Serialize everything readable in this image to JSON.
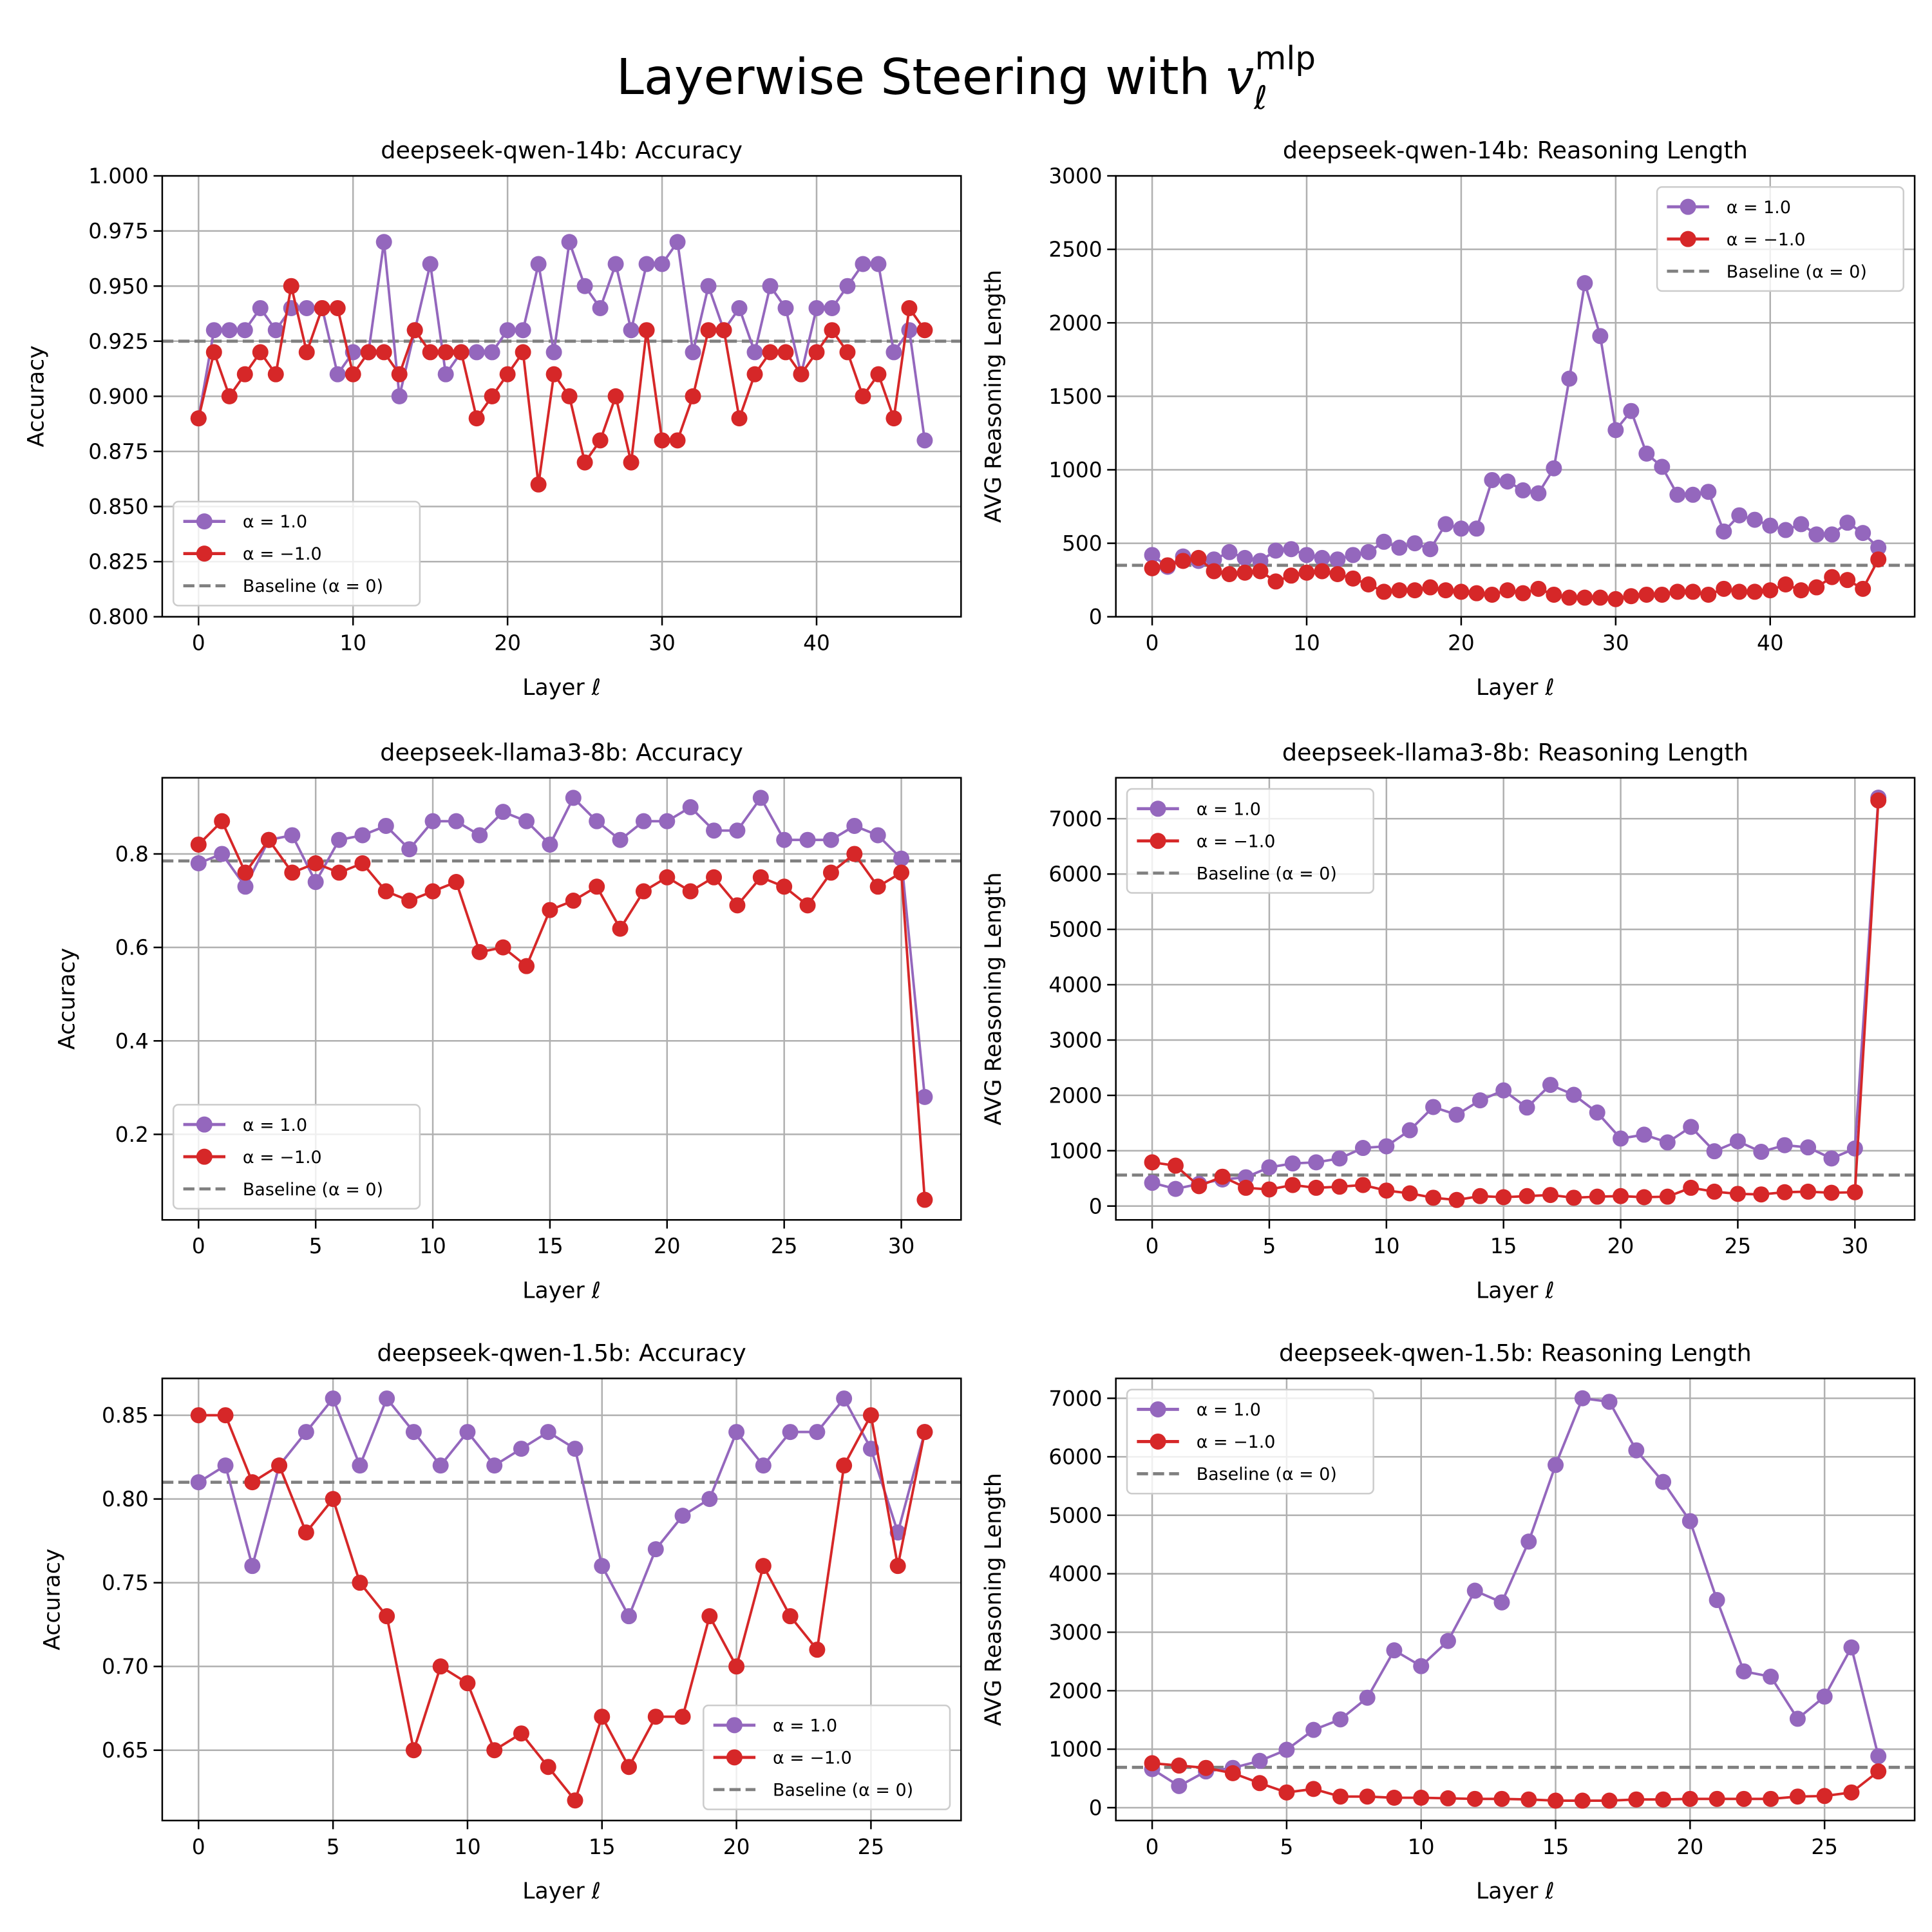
{
  "title": {
    "text": "Layerwise Steering with ",
    "symbol": "v",
    "subscript": "ℓ",
    "superscript": "mlp"
  },
  "chart_data": [
    {
      "type": "line",
      "title": "deepseek-qwen-14b: Accuracy",
      "xlabel": "Layer ℓ",
      "ylabel": "Accuracy",
      "x": [
        0,
        1,
        2,
        3,
        4,
        5,
        6,
        7,
        8,
        9,
        10,
        11,
        12,
        13,
        14,
        15,
        16,
        17,
        18,
        19,
        20,
        21,
        22,
        23,
        24,
        25,
        26,
        27,
        28,
        29,
        30,
        31,
        32,
        33,
        34,
        35,
        36,
        37,
        38,
        39,
        40,
        41,
        42,
        43,
        44,
        45,
        46,
        47
      ],
      "series": [
        {
          "name": "α = 1.0",
          "color": "#9467bd",
          "values": [
            0.89,
            0.93,
            0.93,
            0.93,
            0.94,
            0.93,
            0.94,
            0.94,
            0.94,
            0.91,
            0.92,
            0.92,
            0.97,
            0.9,
            0.93,
            0.96,
            0.91,
            0.92,
            0.92,
            0.92,
            0.93,
            0.93,
            0.96,
            0.92,
            0.97,
            0.95,
            0.94,
            0.96,
            0.93,
            0.96,
            0.96,
            0.97,
            0.92,
            0.95,
            0.93,
            0.94,
            0.92,
            0.95,
            0.94,
            0.91,
            0.94,
            0.94,
            0.95,
            0.96,
            0.96,
            0.92,
            0.93,
            0.88
          ]
        },
        {
          "name": "α = −1.0",
          "color": "#d62728",
          "values": [
            0.89,
            0.92,
            0.9,
            0.91,
            0.92,
            0.91,
            0.95,
            0.92,
            0.94,
            0.94,
            0.91,
            0.92,
            0.92,
            0.91,
            0.93,
            0.92,
            0.92,
            0.92,
            0.89,
            0.9,
            0.91,
            0.92,
            0.86,
            0.91,
            0.9,
            0.87,
            0.88,
            0.9,
            0.87,
            0.93,
            0.88,
            0.88,
            0.9,
            0.93,
            0.93,
            0.89,
            0.91,
            0.92,
            0.92,
            0.91,
            0.92,
            0.93,
            0.92,
            0.9,
            0.91,
            0.89,
            0.94,
            0.93
          ]
        }
      ],
      "baseline": {
        "name": "Baseline (α = 0)",
        "value": 0.925,
        "color": "#808080"
      },
      "xlim": [
        -2.35,
        49.35
      ],
      "xticks": [
        0,
        10,
        20,
        30,
        40
      ],
      "ylim": [
        0.8,
        1.0
      ],
      "yticks": [
        {
          "value": 0.8,
          "label": "0.800"
        },
        {
          "value": 0.825,
          "label": "0.825"
        },
        {
          "value": 0.85,
          "label": "0.850"
        },
        {
          "value": 0.875,
          "label": "0.875"
        },
        {
          "value": 0.9,
          "label": "0.900"
        },
        {
          "value": 0.925,
          "label": "0.925"
        },
        {
          "value": 0.95,
          "label": "0.950"
        },
        {
          "value": 0.975,
          "label": "0.975"
        },
        {
          "value": 1.0,
          "label": "1.000"
        }
      ],
      "grid": true,
      "legend": "lower left"
    },
    {
      "type": "line",
      "title": "deepseek-qwen-14b: Reasoning Length",
      "xlabel": "Layer ℓ",
      "ylabel": "AVG Reasoning Length",
      "x": [
        0,
        1,
        2,
        3,
        4,
        5,
        6,
        7,
        8,
        9,
        10,
        11,
        12,
        13,
        14,
        15,
        16,
        17,
        18,
        19,
        20,
        21,
        22,
        23,
        24,
        25,
        26,
        27,
        28,
        29,
        30,
        31,
        32,
        33,
        34,
        35,
        36,
        37,
        38,
        39,
        40,
        41,
        42,
        43,
        44,
        45,
        46,
        47
      ],
      "series": [
        {
          "name": "α = 1.0",
          "color": "#9467bd",
          "values": [
            420,
            340,
            410,
            380,
            390,
            440,
            400,
            380,
            450,
            460,
            420,
            400,
            390,
            420,
            440,
            510,
            470,
            500,
            460,
            630,
            600,
            600,
            930,
            920,
            860,
            840,
            1010,
            1620,
            2270,
            1910,
            1270,
            1400,
            1110,
            1020,
            830,
            830,
            850,
            580,
            690,
            660,
            620,
            590,
            630,
            560,
            560,
            640,
            570,
            470
          ]
        },
        {
          "name": "α = −1.0",
          "color": "#d62728",
          "values": [
            330,
            350,
            380,
            400,
            310,
            290,
            300,
            310,
            240,
            280,
            300,
            310,
            290,
            260,
            220,
            170,
            180,
            180,
            200,
            180,
            170,
            160,
            150,
            180,
            160,
            190,
            150,
            130,
            130,
            130,
            120,
            140,
            150,
            150,
            170,
            170,
            150,
            190,
            170,
            170,
            180,
            220,
            180,
            200,
            270,
            250,
            190,
            390
          ]
        }
      ],
      "baseline": {
        "name": "Baseline (α = 0)",
        "value": 350,
        "color": "#808080"
      },
      "xlim": [
        -2.35,
        49.35
      ],
      "xticks": [
        0,
        10,
        20,
        30,
        40
      ],
      "ylim": [
        0,
        3000
      ],
      "yticks": [
        0,
        500,
        1000,
        1500,
        2000,
        2500,
        3000
      ],
      "grid": true,
      "legend": "upper right"
    },
    {
      "type": "line",
      "title": "deepseek-llama3-8b: Accuracy",
      "xlabel": "Layer ℓ",
      "ylabel": "Accuracy",
      "x": [
        0,
        1,
        2,
        3,
        4,
        5,
        6,
        7,
        8,
        9,
        10,
        11,
        12,
        13,
        14,
        15,
        16,
        17,
        18,
        19,
        20,
        21,
        22,
        23,
        24,
        25,
        26,
        27,
        28,
        29,
        30,
        31
      ],
      "series": [
        {
          "name": "α = 1.0",
          "color": "#9467bd",
          "values": [
            0.78,
            0.8,
            0.73,
            0.83,
            0.84,
            0.74,
            0.83,
            0.84,
            0.86,
            0.81,
            0.87,
            0.87,
            0.84,
            0.89,
            0.87,
            0.82,
            0.92,
            0.87,
            0.83,
            0.87,
            0.87,
            0.9,
            0.85,
            0.85,
            0.92,
            0.83,
            0.83,
            0.83,
            0.86,
            0.84,
            0.79,
            0.28
          ]
        },
        {
          "name": "α = −1.0",
          "color": "#d62728",
          "values": [
            0.82,
            0.87,
            0.76,
            0.83,
            0.76,
            0.78,
            0.76,
            0.78,
            0.72,
            0.7,
            0.72,
            0.74,
            0.59,
            0.6,
            0.56,
            0.68,
            0.7,
            0.73,
            0.64,
            0.72,
            0.75,
            0.72,
            0.75,
            0.69,
            0.75,
            0.73,
            0.69,
            0.76,
            0.8,
            0.73,
            0.76,
            0.06
          ]
        }
      ],
      "baseline": {
        "name": "Baseline (α = 0)",
        "value": 0.785,
        "color": "#808080"
      },
      "xlim": [
        -1.55,
        32.55
      ],
      "xticks": [
        0,
        5,
        10,
        15,
        20,
        25,
        30
      ],
      "ylim": [
        0.017,
        0.963
      ],
      "yticks": [
        0.2,
        0.4,
        0.6,
        0.8
      ],
      "grid": true,
      "legend": "lower left"
    },
    {
      "type": "line",
      "title": "deepseek-llama3-8b: Reasoning Length",
      "xlabel": "Layer ℓ",
      "ylabel": "AVG Reasoning Length",
      "x": [
        0,
        1,
        2,
        3,
        4,
        5,
        6,
        7,
        8,
        9,
        10,
        11,
        12,
        13,
        14,
        15,
        16,
        17,
        18,
        19,
        20,
        21,
        22,
        23,
        24,
        25,
        26,
        27,
        28,
        29,
        30,
        31
      ],
      "series": [
        {
          "name": "α = 1.0",
          "color": "#9467bd",
          "values": [
            420,
            310,
            400,
            480,
            520,
            700,
            770,
            790,
            860,
            1050,
            1080,
            1370,
            1790,
            1650,
            1910,
            2090,
            1780,
            2190,
            2010,
            1690,
            1220,
            1290,
            1150,
            1430,
            990,
            1170,
            980,
            1100,
            1060,
            860,
            1040,
            7380
          ]
        },
        {
          "name": "α = −1.0",
          "color": "#d62728",
          "values": [
            790,
            730,
            360,
            530,
            330,
            300,
            380,
            330,
            350,
            380,
            280,
            230,
            150,
            110,
            180,
            160,
            180,
            200,
            150,
            170,
            180,
            160,
            170,
            330,
            260,
            220,
            210,
            250,
            260,
            240,
            250,
            7330
          ]
        }
      ],
      "baseline": {
        "name": "Baseline (α = 0)",
        "value": 560,
        "color": "#808080"
      },
      "xlim": [
        -1.55,
        32.55
      ],
      "xticks": [
        0,
        5,
        10,
        15,
        20,
        25,
        30
      ],
      "ylim": [
        -250,
        7740
      ],
      "yticks": [
        0,
        1000,
        2000,
        3000,
        4000,
        5000,
        6000,
        7000
      ],
      "grid": true,
      "legend": "upper left"
    },
    {
      "type": "line",
      "title": "deepseek-qwen-1.5b: Accuracy",
      "xlabel": "Layer ℓ",
      "ylabel": "Accuracy",
      "x": [
        0,
        1,
        2,
        3,
        4,
        5,
        6,
        7,
        8,
        9,
        10,
        11,
        12,
        13,
        14,
        15,
        16,
        17,
        18,
        19,
        20,
        21,
        22,
        23,
        24,
        25,
        26,
        27
      ],
      "series": [
        {
          "name": "α = 1.0",
          "color": "#9467bd",
          "values": [
            0.81,
            0.82,
            0.76,
            0.82,
            0.84,
            0.86,
            0.82,
            0.86,
            0.84,
            0.82,
            0.84,
            0.82,
            0.83,
            0.84,
            0.83,
            0.76,
            0.73,
            0.77,
            0.79,
            0.8,
            0.84,
            0.82,
            0.84,
            0.84,
            0.86,
            0.83,
            0.78,
            0.84
          ]
        },
        {
          "name": "α = −1.0",
          "color": "#d62728",
          "values": [
            0.85,
            0.85,
            0.81,
            0.82,
            0.78,
            0.8,
            0.75,
            0.73,
            0.65,
            0.7,
            0.69,
            0.65,
            0.66,
            0.64,
            0.62,
            0.67,
            0.64,
            0.67,
            0.67,
            0.73,
            0.7,
            0.76,
            0.73,
            0.71,
            0.82,
            0.85,
            0.76,
            0.84
          ]
        }
      ],
      "baseline": {
        "name": "Baseline (α = 0)",
        "value": 0.81,
        "color": "#808080"
      },
      "xlim": [
        -1.35,
        28.35
      ],
      "xticks": [
        0,
        5,
        10,
        15,
        20,
        25
      ],
      "ylim": [
        0.608,
        0.872
      ],
      "yticks": [
        {
          "value": 0.65,
          "label": "0.65"
        },
        {
          "value": 0.7,
          "label": "0.70"
        },
        {
          "value": 0.75,
          "label": "0.75"
        },
        {
          "value": 0.8,
          "label": "0.80"
        },
        {
          "value": 0.85,
          "label": "0.85"
        }
      ],
      "grid": true,
      "legend": "lower right"
    },
    {
      "type": "line",
      "title": "deepseek-qwen-1.5b: Reasoning Length",
      "xlabel": "Layer ℓ",
      "ylabel": "AVG Reasoning Length",
      "x": [
        0,
        1,
        2,
        3,
        4,
        5,
        6,
        7,
        8,
        9,
        10,
        11,
        12,
        13,
        14,
        15,
        16,
        17,
        18,
        19,
        20,
        21,
        22,
        23,
        24,
        25,
        26,
        27
      ],
      "series": [
        {
          "name": "α = 1.0",
          "color": "#9467bd",
          "values": [
            660,
            370,
            620,
            680,
            800,
            990,
            1330,
            1510,
            1880,
            2690,
            2420,
            2850,
            3710,
            3510,
            4550,
            5860,
            7000,
            6940,
            6110,
            5570,
            4900,
            3550,
            2330,
            2240,
            1520,
            1900,
            2740,
            880
          ]
        },
        {
          "name": "α = −1.0",
          "color": "#d62728",
          "values": [
            760,
            720,
            680,
            590,
            420,
            260,
            320,
            190,
            190,
            170,
            170,
            160,
            150,
            150,
            140,
            120,
            120,
            120,
            140,
            140,
            150,
            150,
            150,
            150,
            190,
            200,
            260,
            620
          ]
        }
      ],
      "baseline": {
        "name": "Baseline (α = 0)",
        "value": 690,
        "color": "#808080"
      },
      "xlim": [
        -1.35,
        28.35
      ],
      "xticks": [
        0,
        5,
        10,
        15,
        20,
        25
      ],
      "ylim": [
        -220,
        7340
      ],
      "yticks": [
        0,
        1000,
        2000,
        3000,
        4000,
        5000,
        6000,
        7000
      ],
      "grid": true,
      "legend": "upper left"
    }
  ]
}
